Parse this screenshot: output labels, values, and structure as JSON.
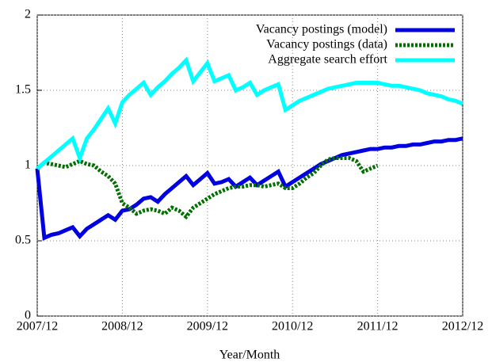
{
  "chart_data": {
    "type": "line",
    "xlabel": "Year/Month",
    "categories": [
      "2007/12",
      null,
      null,
      null,
      null,
      null,
      null,
      null,
      null,
      null,
      null,
      null,
      "2008/12",
      null,
      null,
      null,
      null,
      null,
      null,
      null,
      null,
      null,
      null,
      null,
      "2009/12",
      null,
      null,
      null,
      null,
      null,
      null,
      null,
      null,
      null,
      null,
      null,
      "2010/12",
      null,
      null,
      null,
      null,
      null,
      null,
      null,
      null,
      null,
      null,
      null,
      "2011/12",
      null,
      null,
      null,
      null,
      null,
      null,
      null,
      null,
      null,
      null,
      null,
      "2012/12"
    ],
    "ylim": [
      0,
      2
    ],
    "yticks": [
      0,
      0.5,
      1,
      1.5,
      2
    ],
    "grid": true,
    "legend": "top-right",
    "series": [
      {
        "name": "Vacancy postings (model)",
        "color": "#0000e0",
        "dash": false,
        "values": [
          0.98,
          0.52,
          0.54,
          0.55,
          0.57,
          0.59,
          0.53,
          0.58,
          0.61,
          0.64,
          0.67,
          0.64,
          0.7,
          0.71,
          0.74,
          0.78,
          0.79,
          0.76,
          0.81,
          0.85,
          0.89,
          0.93,
          0.87,
          0.91,
          0.95,
          0.88,
          0.89,
          0.91,
          0.86,
          0.89,
          0.92,
          0.87,
          0.9,
          0.93,
          0.96,
          0.86,
          0.89,
          0.92,
          0.95,
          0.98,
          1.01,
          1.03,
          1.05,
          1.07,
          1.08,
          1.09,
          1.1,
          1.11,
          1.11,
          1.12,
          1.12,
          1.13,
          1.13,
          1.14,
          1.14,
          1.15,
          1.16,
          1.16,
          1.17,
          1.17,
          1.18
        ]
      },
      {
        "name": "Vacancy postings (data)",
        "color": "#007000",
        "dash": true,
        "values": [
          0.98,
          1.02,
          1.01,
          1.0,
          0.99,
          1.01,
          1.03,
          1.01,
          1.0,
          0.96,
          0.93,
          0.88,
          0.75,
          0.72,
          0.68,
          0.7,
          0.71,
          0.7,
          0.68,
          0.72,
          0.7,
          0.66,
          0.72,
          0.75,
          0.78,
          0.81,
          0.83,
          0.85,
          0.86,
          0.86,
          0.87,
          0.87,
          0.86,
          0.87,
          0.88,
          0.85,
          0.85,
          0.88,
          0.92,
          0.95,
          1.0,
          1.04,
          1.05,
          1.05,
          1.05,
          1.03,
          0.96,
          0.98,
          1.0,
          null,
          null,
          null,
          null,
          null,
          null,
          null,
          null,
          null,
          null,
          null,
          null
        ]
      },
      {
        "name": "Aggregate search effort",
        "color": "#00ffff",
        "dash": false,
        "values": [
          0.98,
          1.02,
          1.06,
          1.1,
          1.14,
          1.18,
          1.05,
          1.18,
          1.24,
          1.31,
          1.38,
          1.28,
          1.42,
          1.47,
          1.51,
          1.55,
          1.47,
          1.52,
          1.56,
          1.61,
          1.65,
          1.7,
          1.56,
          1.62,
          1.68,
          1.56,
          1.58,
          1.6,
          1.5,
          1.52,
          1.55,
          1.47,
          1.5,
          1.52,
          1.54,
          1.37,
          1.4,
          1.43,
          1.45,
          1.47,
          1.49,
          1.51,
          1.52,
          1.53,
          1.54,
          1.55,
          1.55,
          1.55,
          1.55,
          1.54,
          1.53,
          1.53,
          1.52,
          1.51,
          1.5,
          1.48,
          1.47,
          1.46,
          1.44,
          1.43,
          1.41
        ]
      }
    ]
  }
}
